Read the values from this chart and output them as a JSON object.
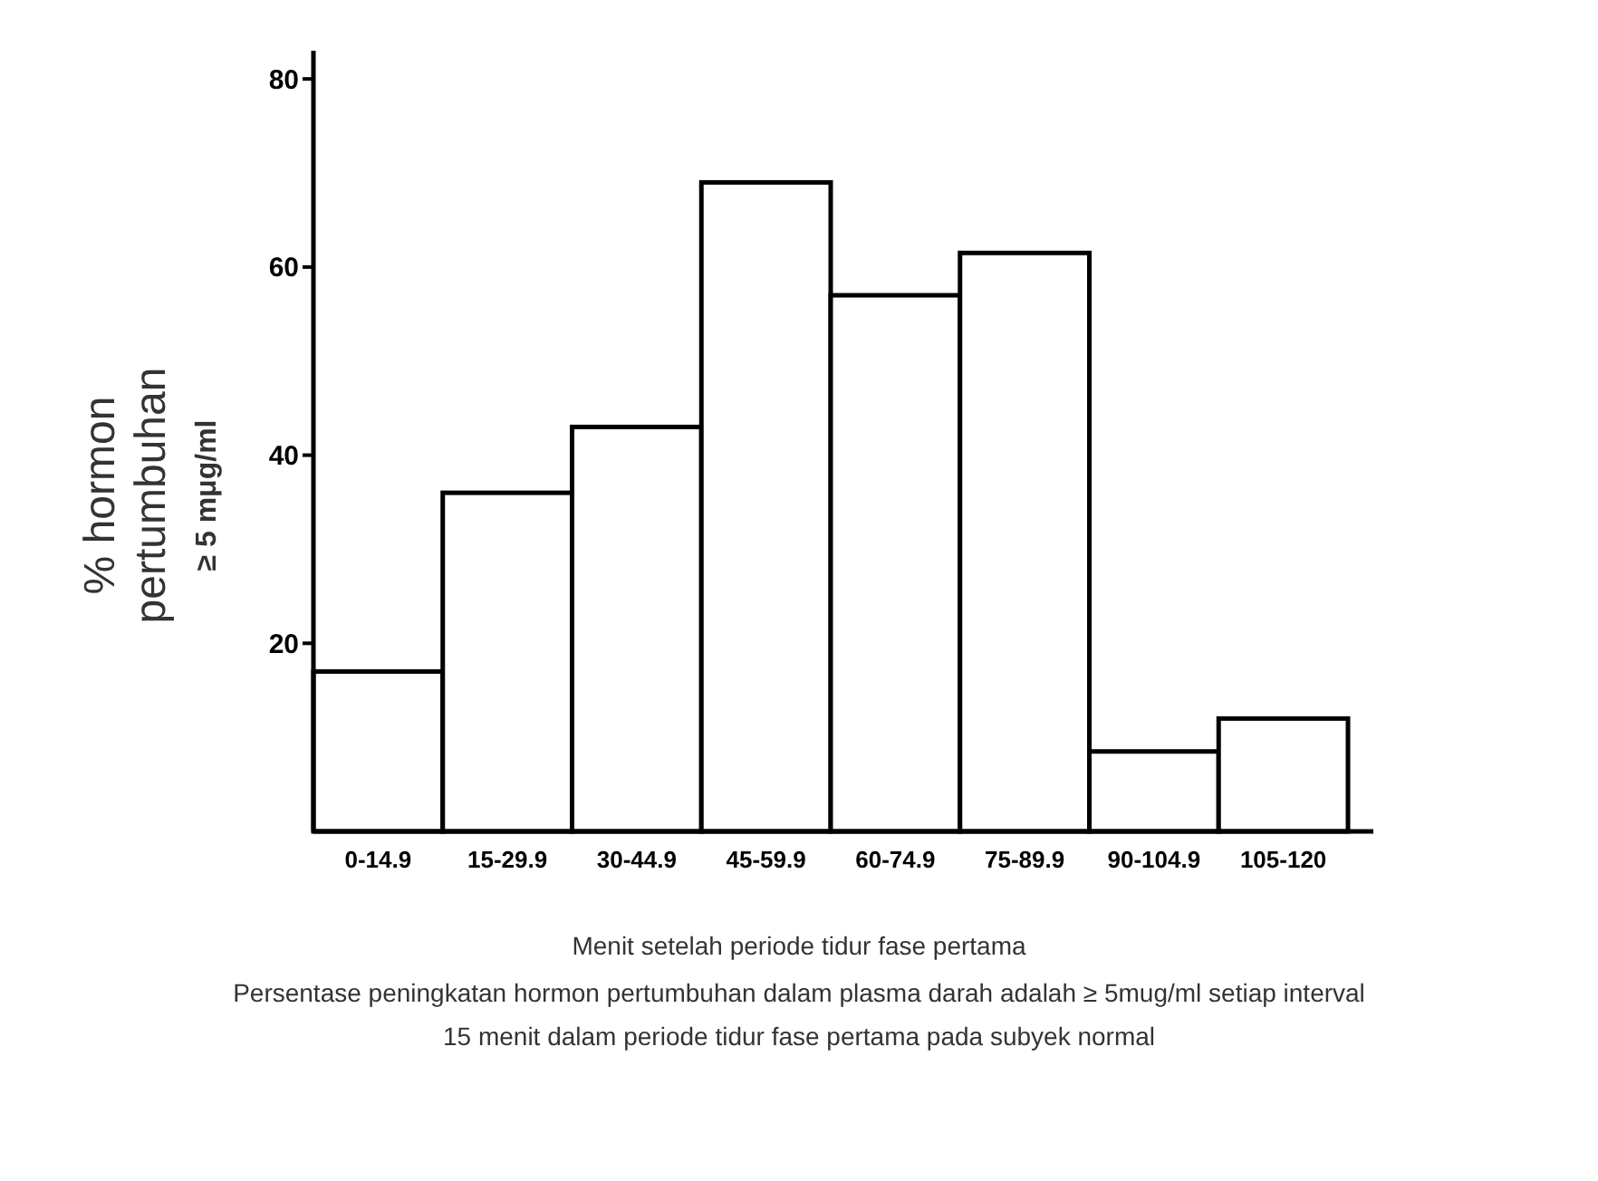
{
  "chart_data": {
    "type": "bar",
    "categories": [
      "0-14.9",
      "15-29.9",
      "30-44.9",
      "45-59.9",
      "60-74.9",
      "75-89.9",
      "90-104.9",
      "105-120"
    ],
    "values": [
      17,
      36,
      43,
      69,
      57,
      61.5,
      8.5,
      12
    ],
    "color": "#ffffff",
    "ylabel": "% hormon\npertumbuhan\n≥ 5 mμg/ml",
    "xlabel": "Menit setelah periode tidur fase pertama",
    "annotations": [
      "Persentase peningkatan hormon pertumbuhan dalam plasma darah adalah ≥ 5mug/ml setiap interval\n15 menit dalam periode tidur fase pertama pada subyek normal"
    ],
    "ylim": [
      0,
      83
    ],
    "yticks": [
      20,
      40,
      60,
      80
    ],
    "grid": false
  }
}
